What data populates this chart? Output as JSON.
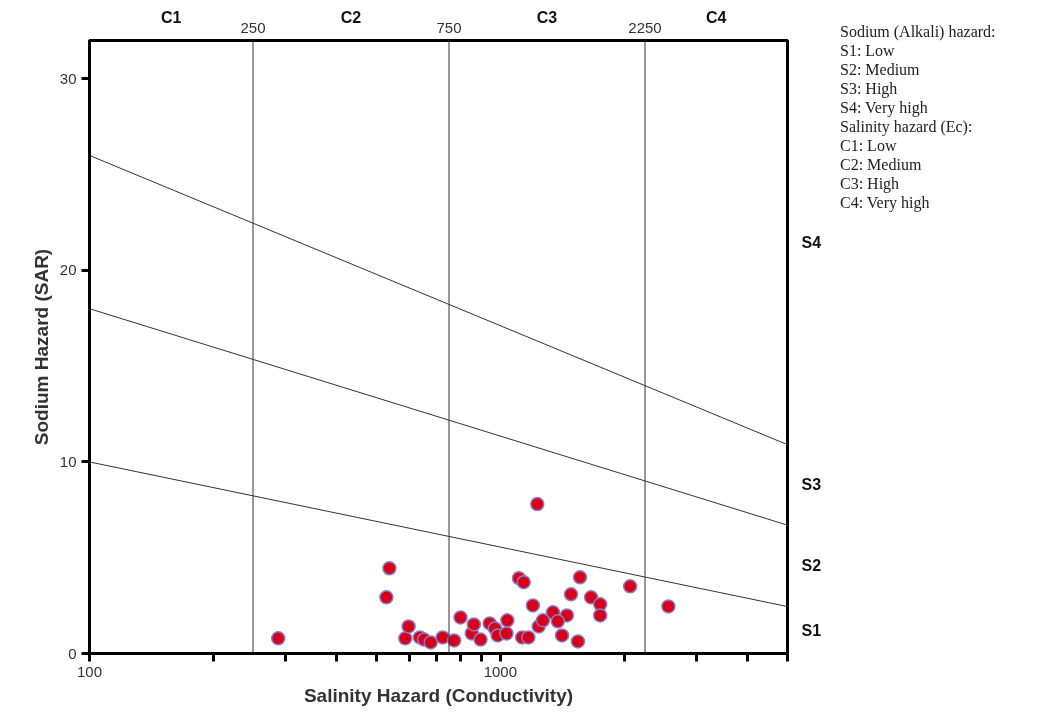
{
  "chart_data": {
    "type": "scatter",
    "xlabel": "Salinity Hazard (Conductivity)",
    "ylabel": "Sodium Hazard (SAR)",
    "log": "x",
    "xlim": [
      100,
      5000
    ],
    "ylim": [
      0,
      32
    ],
    "xticks": [
      100,
      {
        "value": 200,
        "label": null
      },
      {
        "value": 300,
        "label": null
      },
      {
        "value": 400,
        "label": null
      },
      {
        "value": 500,
        "label": null
      },
      {
        "value": 600,
        "label": null
      },
      {
        "value": 700,
        "label": null
      },
      {
        "value": 800,
        "label": null
      },
      {
        "value": 900,
        "label": null
      },
      1000,
      {
        "value": 2000,
        "label": null
      },
      {
        "value": 3000,
        "label": null
      },
      {
        "value": 4000,
        "label": null
      },
      {
        "value": 5000,
        "label": null
      }
    ],
    "yticks": [
      0,
      10,
      20,
      30
    ],
    "grid": false,
    "ref_lines": [
      {
        "axis": "x",
        "value": 250,
        "label": "250",
        "color": "#333333"
      },
      {
        "axis": "x",
        "value": 750,
        "label": "750",
        "color": "#333333"
      },
      {
        "axis": "x",
        "value": 2250,
        "label": "2250",
        "color": "#333333"
      }
    ],
    "series": [
      {
        "color": "#d7001a",
        "x": [
          288,
          537,
          528,
          587,
          598,
          637,
          652,
          677,
          724,
          772,
          800,
          852,
          862,
          895,
          942,
          970,
          985,
          1035,
          1040,
          1110,
          1140,
          1130,
          1170,
          1200,
          1240,
          1270,
          1230,
          1563,
          2070,
          2565,
          1486,
          1663,
          1750,
          1750,
          1343,
          1452,
          1380,
          1413,
          1545
        ],
        "values": [
          0.79,
          4.45,
          2.93,
          0.79,
          1.41,
          0.84,
          0.73,
          0.58,
          0.84,
          0.68,
          1.88,
          1.05,
          1.52,
          0.73,
          1.57,
          1.31,
          0.94,
          1.05,
          1.73,
          3.93,
          3.72,
          0.84,
          0.84,
          2.51,
          1.41,
          1.73,
          7.8,
          3.98,
          3.51,
          2.46,
          3.09,
          2.93,
          2.57,
          1.99,
          2.15,
          1.99,
          1.68,
          0.94,
          0.63
        ]
      },
      {
        "type": "line",
        "color": "#333333",
        "x": [
          100,
          5000
        ],
        "values": [
          10,
          2.45
        ]
      },
      {
        "type": "line",
        "color": "#333333",
        "x": [
          100,
          5000
        ],
        "values": [
          18,
          6.7
        ]
      },
      {
        "type": "line",
        "color": "#333333",
        "x": [
          100,
          5000
        ],
        "values": [
          26,
          10.9
        ]
      }
    ],
    "annotations": [
      "S1",
      "S2",
      "S3",
      "S4",
      "C1",
      "C2",
      "C3",
      "C4",
      "Sodium (Alkali) hazard:",
      "S1: Low",
      "S2: Medium",
      "S3: High",
      "S4: Very high",
      "Salinity hazard (Ec):",
      "C1: Low",
      "C2: Medium",
      "C3: High",
      "C4: Very high"
    ]
  }
}
